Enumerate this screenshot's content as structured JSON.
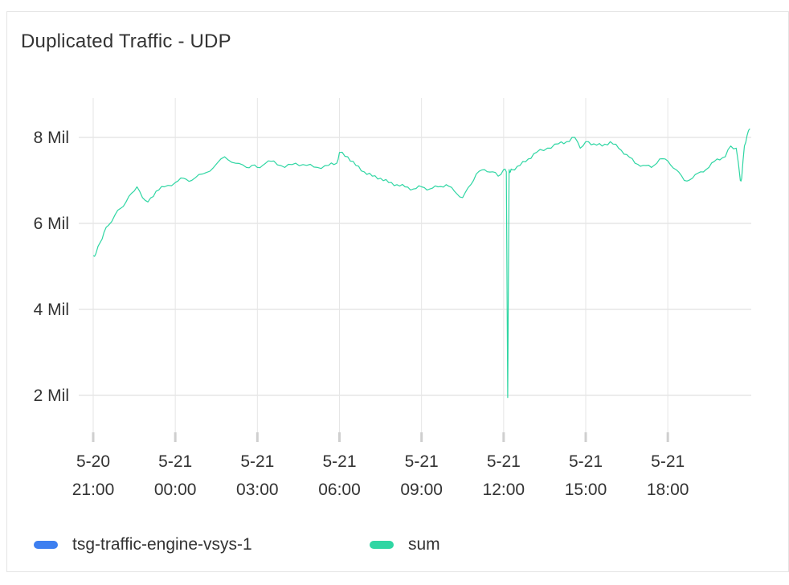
{
  "panel": {
    "title": "Duplicated Traffic - UDP"
  },
  "colors": {
    "series_blue": "#3d7ff0",
    "series_sum": "#2fd6a3",
    "grid": "#e6e6e6"
  },
  "legend": [
    {
      "name": "tsg-traffic-engine-vsys-1",
      "color": "#3d7ff0"
    },
    {
      "name": "sum",
      "color": "#2fd6a3"
    }
  ],
  "chart_data": {
    "type": "line",
    "title": "Duplicated Traffic - UDP",
    "xlabel": "",
    "ylabel": "",
    "x_range_hours": [
      0,
      24
    ],
    "ylim": [
      1,
      9
    ],
    "y_ticks": [
      {
        "value": 2,
        "label": "2 Mil"
      },
      {
        "value": 4,
        "label": "4 Mil"
      },
      {
        "value": 6,
        "label": "6 Mil"
      },
      {
        "value": 8,
        "label": "8 Mil"
      }
    ],
    "x_ticks": [
      {
        "hour": 0,
        "date": "5-20",
        "time": "21:00"
      },
      {
        "hour": 3,
        "date": "5-21",
        "time": "00:00"
      },
      {
        "hour": 6,
        "date": "5-21",
        "time": "03:00"
      },
      {
        "hour": 9,
        "date": "5-21",
        "time": "06:00"
      },
      {
        "hour": 12,
        "date": "5-21",
        "time": "09:00"
      },
      {
        "hour": 15,
        "date": "5-21",
        "time": "12:00"
      },
      {
        "hour": 18,
        "date": "5-21",
        "time": "15:00"
      },
      {
        "hour": 21,
        "date": "5-21",
        "time": "18:00"
      }
    ],
    "grid": true,
    "legend_position": "bottom-left",
    "series": [
      {
        "name": "tsg-traffic-engine-vsys-1",
        "x": [],
        "y": []
      },
      {
        "name": "sum",
        "x": [
          0,
          0.1,
          0.25,
          0.4,
          0.55,
          0.8,
          1.0,
          1.2,
          1.4,
          1.6,
          1.8,
          2.0,
          2.3,
          2.6,
          3.0,
          3.3,
          3.6,
          4.0,
          4.4,
          4.8,
          5.2,
          5.6,
          5.8,
          6.0,
          6.3,
          6.6,
          7.0,
          7.4,
          7.8,
          8.2,
          8.6,
          8.9,
          9.0,
          9.3,
          9.6,
          9.9,
          10.2,
          10.5,
          10.8,
          11.1,
          11.4,
          11.7,
          12.0,
          12.3,
          12.6,
          12.9,
          13.2,
          13.5,
          13.8,
          14.0,
          14.3,
          14.6,
          14.8,
          15.0,
          15.1,
          15.15,
          15.2,
          15.25,
          15.3,
          15.6,
          15.9,
          16.2,
          16.6,
          17.0,
          17.3,
          17.6,
          17.8,
          18.0,
          18.3,
          18.6,
          18.9,
          19.2,
          19.5,
          19.8,
          20.1,
          20.4,
          20.7,
          21.0,
          21.3,
          21.6,
          21.9,
          22.2,
          22.5,
          22.8,
          23.1,
          23.3,
          23.5,
          23.65,
          23.7,
          23.8,
          23.9,
          24.0
        ],
        "y": [
          5.25,
          5.3,
          5.55,
          5.8,
          5.95,
          6.2,
          6.35,
          6.5,
          6.7,
          6.85,
          6.6,
          6.5,
          6.75,
          6.85,
          6.95,
          7.05,
          7.0,
          7.15,
          7.3,
          7.55,
          7.4,
          7.3,
          7.35,
          7.3,
          7.4,
          7.45,
          7.3,
          7.4,
          7.35,
          7.3,
          7.35,
          7.4,
          7.65,
          7.55,
          7.35,
          7.2,
          7.1,
          7.05,
          6.95,
          6.9,
          6.85,
          6.8,
          6.85,
          6.8,
          6.85,
          6.9,
          6.75,
          6.6,
          6.9,
          7.15,
          7.25,
          7.2,
          7.1,
          7.25,
          7.2,
          1.95,
          7.25,
          7.2,
          7.25,
          7.35,
          7.5,
          7.65,
          7.75,
          7.85,
          7.9,
          8.0,
          7.75,
          7.9,
          7.85,
          7.8,
          7.9,
          7.75,
          7.6,
          7.4,
          7.35,
          7.3,
          7.5,
          7.45,
          7.25,
          7.0,
          7.05,
          7.2,
          7.3,
          7.5,
          7.55,
          7.8,
          7.75,
          7.0,
          7.05,
          7.8,
          8.05,
          8.2
        ]
      }
    ]
  }
}
